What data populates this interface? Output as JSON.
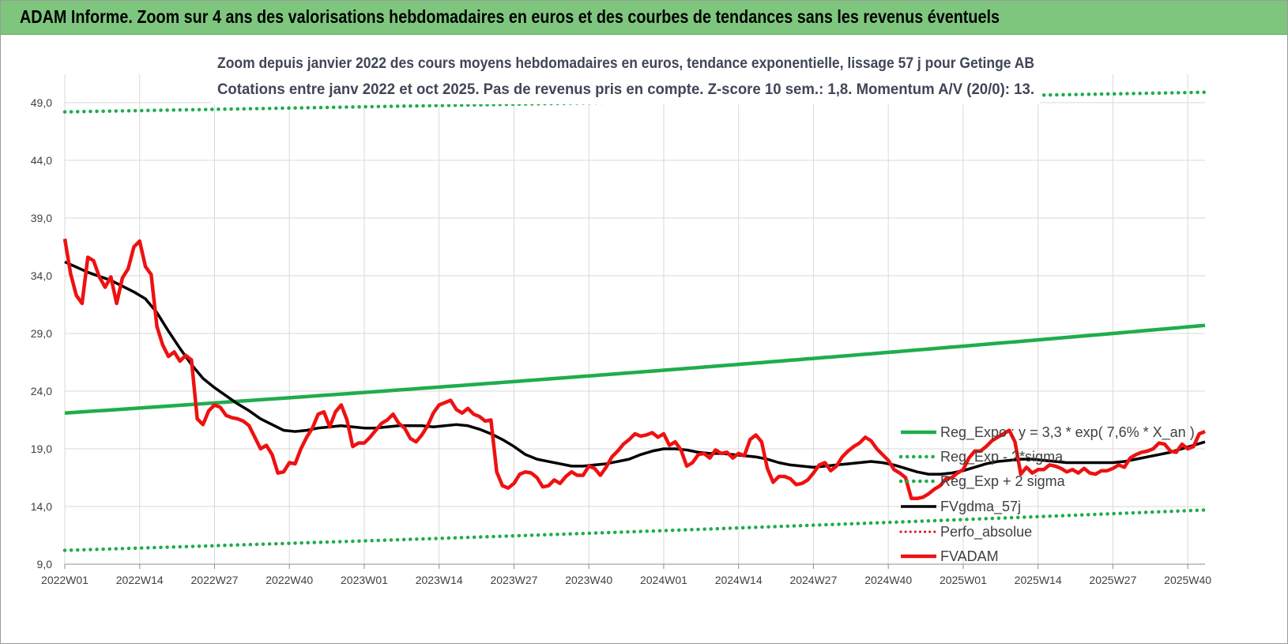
{
  "banner": {
    "title": "ADAM Informe. Zoom sur 4 ans des valorisations hebdomadaires en euros et des courbes de tendances sans les revenus éventuels"
  },
  "colors": {
    "banner_bg": "#7ec67e",
    "trend_green": "#1fad4c",
    "band_green": "#1fad4c",
    "fvgdma_black": "#000000",
    "perfo_red": "#e01010",
    "fvadam_red": "#ee1111",
    "grid": "#d9d9d9"
  },
  "chart_data": {
    "type": "line",
    "title": "Zoom depuis janvier 2022 des cours moyens hebdomadaires en euros, tendance exponentielle, lissage 57 j pour Getinge AB",
    "subtitle": "Cotations entre janv 2022 et oct 2025. Pas de revenus pris en compte. Z-score 10 sem.: 1,8. Momentum A/V (20/0): 13.",
    "x_ticks": [
      "2022W01",
      "2022W14",
      "2022W27",
      "2022W40",
      "2023W01",
      "2023W14",
      "2023W27",
      "2023W40",
      "2024W01",
      "2024W14",
      "2024W27",
      "2024W40",
      "2025W01",
      "2025W14",
      "2025W27",
      "2025W40"
    ],
    "x_tick_index": [
      0,
      13,
      26,
      39,
      52,
      65,
      78,
      91,
      104,
      117,
      130,
      143,
      156,
      169,
      182,
      195
    ],
    "n_weeks": 199,
    "y_ticks": [
      "9,0",
      "14,0",
      "19,0",
      "24,0",
      "29,0",
      "34,0",
      "39,0",
      "44,0",
      "49,0"
    ],
    "ylim": [
      9,
      50.5
    ],
    "grid": true,
    "legend_position": "right",
    "series": [
      {
        "name": "Reg_Expo : y = 3,3 * exp( 7,6% *  X_an )",
        "style": "solid",
        "start": 22.1,
        "end": 29.7
      },
      {
        "name": "Reg_Exp - 2*sigma",
        "style": "dotted",
        "start": 10.2,
        "end": 13.7
      },
      {
        "name": "Reg_Exp + 2 sigma",
        "style": "dotted",
        "start": 48.2,
        "end": 49.9
      },
      {
        "name": "FVgdma_57j",
        "style": "solid",
        "points": [
          [
            0,
            35.2
          ],
          [
            4,
            34.3
          ],
          [
            8,
            33.6
          ],
          [
            12,
            32.6
          ],
          [
            14,
            32.0
          ],
          [
            16,
            30.8
          ],
          [
            18,
            29.2
          ],
          [
            20,
            27.7
          ],
          [
            22,
            26.3
          ],
          [
            24,
            25.1
          ],
          [
            26,
            24.3
          ],
          [
            28,
            23.6
          ],
          [
            30,
            22.9
          ],
          [
            32,
            22.3
          ],
          [
            34,
            21.6
          ],
          [
            36,
            21.1
          ],
          [
            38,
            20.6
          ],
          [
            40,
            20.5
          ],
          [
            42,
            20.6
          ],
          [
            44,
            20.8
          ],
          [
            46,
            20.9
          ],
          [
            48,
            21.0
          ],
          [
            50,
            20.9
          ],
          [
            52,
            20.8
          ],
          [
            54,
            20.8
          ],
          [
            56,
            20.9
          ],
          [
            58,
            21.0
          ],
          [
            60,
            21.0
          ],
          [
            62,
            21.0
          ],
          [
            64,
            20.9
          ],
          [
            66,
            21.0
          ],
          [
            68,
            21.1
          ],
          [
            70,
            21.0
          ],
          [
            72,
            20.7
          ],
          [
            74,
            20.3
          ],
          [
            76,
            19.8
          ],
          [
            78,
            19.2
          ],
          [
            80,
            18.5
          ],
          [
            82,
            18.1
          ],
          [
            84,
            17.9
          ],
          [
            86,
            17.7
          ],
          [
            88,
            17.5
          ],
          [
            90,
            17.5
          ],
          [
            92,
            17.6
          ],
          [
            94,
            17.7
          ],
          [
            96,
            17.9
          ],
          [
            98,
            18.1
          ],
          [
            100,
            18.5
          ],
          [
            102,
            18.8
          ],
          [
            104,
            19.0
          ],
          [
            106,
            19.0
          ],
          [
            108,
            18.9
          ],
          [
            110,
            18.7
          ],
          [
            112,
            18.6
          ],
          [
            114,
            18.6
          ],
          [
            116,
            18.5
          ],
          [
            118,
            18.4
          ],
          [
            120,
            18.3
          ],
          [
            122,
            18.1
          ],
          [
            124,
            17.8
          ],
          [
            126,
            17.6
          ],
          [
            128,
            17.5
          ],
          [
            130,
            17.4
          ],
          [
            132,
            17.5
          ],
          [
            134,
            17.6
          ],
          [
            136,
            17.7
          ],
          [
            138,
            17.8
          ],
          [
            140,
            17.9
          ],
          [
            142,
            17.8
          ],
          [
            144,
            17.6
          ],
          [
            146,
            17.3
          ],
          [
            148,
            17.0
          ],
          [
            150,
            16.8
          ],
          [
            152,
            16.8
          ],
          [
            154,
            16.9
          ],
          [
            156,
            17.1
          ],
          [
            158,
            17.4
          ],
          [
            160,
            17.7
          ],
          [
            162,
            17.9
          ],
          [
            164,
            18.0
          ],
          [
            166,
            18.1
          ],
          [
            168,
            18.1
          ],
          [
            170,
            18.0
          ],
          [
            172,
            17.9
          ],
          [
            174,
            17.8
          ],
          [
            176,
            17.8
          ],
          [
            178,
            17.8
          ],
          [
            180,
            17.8
          ],
          [
            182,
            17.8
          ],
          [
            184,
            17.9
          ],
          [
            186,
            18.1
          ],
          [
            188,
            18.3
          ],
          [
            190,
            18.5
          ],
          [
            192,
            18.7
          ],
          [
            194,
            19.0
          ],
          [
            196,
            19.3
          ],
          [
            198,
            19.6
          ]
        ]
      },
      {
        "name": "Perfo_absolue",
        "style": "dotted",
        "points": []
      },
      {
        "name": "FVADAM",
        "style": "solid-thick",
        "points": [
          [
            0,
            37.2
          ],
          [
            1,
            34.2
          ],
          [
            2,
            32.3
          ],
          [
            3,
            31.6
          ],
          [
            4,
            35.6
          ],
          [
            5,
            35.3
          ],
          [
            6,
            33.9
          ],
          [
            7,
            33.0
          ],
          [
            8,
            33.9
          ],
          [
            9,
            31.6
          ],
          [
            10,
            33.8
          ],
          [
            11,
            34.6
          ],
          [
            12,
            36.5
          ],
          [
            13,
            37.0
          ],
          [
            14,
            34.8
          ],
          [
            15,
            34.1
          ],
          [
            16,
            29.6
          ],
          [
            17,
            28.0
          ],
          [
            18,
            27.0
          ],
          [
            19,
            27.4
          ],
          [
            20,
            26.6
          ],
          [
            21,
            27.1
          ],
          [
            22,
            26.7
          ],
          [
            23,
            21.6
          ],
          [
            24,
            21.1
          ],
          [
            25,
            22.3
          ],
          [
            26,
            22.8
          ],
          [
            27,
            22.6
          ],
          [
            28,
            21.9
          ],
          [
            29,
            21.7
          ],
          [
            30,
            21.6
          ],
          [
            31,
            21.4
          ],
          [
            32,
            21.0
          ],
          [
            33,
            20.0
          ],
          [
            34,
            19.0
          ],
          [
            35,
            19.3
          ],
          [
            36,
            18.5
          ],
          [
            37,
            16.9
          ],
          [
            38,
            17.0
          ],
          [
            39,
            17.8
          ],
          [
            40,
            17.7
          ],
          [
            41,
            19.0
          ],
          [
            42,
            20.0
          ],
          [
            43,
            20.8
          ],
          [
            44,
            22.0
          ],
          [
            45,
            22.2
          ],
          [
            46,
            20.9
          ],
          [
            47,
            22.2
          ],
          [
            48,
            22.8
          ],
          [
            49,
            21.5
          ],
          [
            50,
            19.2
          ],
          [
            51,
            19.5
          ],
          [
            52,
            19.5
          ],
          [
            53,
            20.0
          ],
          [
            54,
            20.6
          ],
          [
            55,
            21.2
          ],
          [
            56,
            21.5
          ],
          [
            57,
            22.0
          ],
          [
            58,
            21.2
          ],
          [
            59,
            20.8
          ],
          [
            60,
            19.9
          ],
          [
            61,
            19.6
          ],
          [
            62,
            20.2
          ],
          [
            63,
            21.0
          ],
          [
            64,
            22.1
          ],
          [
            65,
            22.8
          ],
          [
            66,
            23.0
          ],
          [
            67,
            23.2
          ],
          [
            68,
            22.4
          ],
          [
            69,
            22.1
          ],
          [
            70,
            22.5
          ],
          [
            71,
            22.0
          ],
          [
            72,
            21.8
          ],
          [
            73,
            21.4
          ],
          [
            74,
            21.5
          ],
          [
            75,
            17.0
          ],
          [
            76,
            15.8
          ],
          [
            77,
            15.6
          ],
          [
            78,
            16.0
          ],
          [
            79,
            16.8
          ],
          [
            80,
            17.0
          ],
          [
            81,
            16.9
          ],
          [
            82,
            16.5
          ],
          [
            83,
            15.7
          ],
          [
            84,
            15.8
          ],
          [
            85,
            16.3
          ],
          [
            86,
            16.0
          ],
          [
            87,
            16.6
          ],
          [
            88,
            17.0
          ],
          [
            89,
            16.7
          ],
          [
            90,
            16.7
          ],
          [
            91,
            17.5
          ],
          [
            92,
            17.3
          ],
          [
            93,
            16.7
          ],
          [
            94,
            17.4
          ],
          [
            95,
            18.3
          ],
          [
            96,
            18.8
          ],
          [
            97,
            19.4
          ],
          [
            98,
            19.8
          ],
          [
            99,
            20.3
          ],
          [
            100,
            20.1
          ],
          [
            101,
            20.2
          ],
          [
            102,
            20.4
          ],
          [
            103,
            20.0
          ],
          [
            104,
            20.3
          ],
          [
            105,
            19.3
          ],
          [
            106,
            19.6
          ],
          [
            107,
            18.9
          ],
          [
            108,
            17.5
          ],
          [
            109,
            17.8
          ],
          [
            110,
            18.5
          ],
          [
            111,
            18.6
          ],
          [
            112,
            18.2
          ],
          [
            113,
            18.9
          ],
          [
            114,
            18.6
          ],
          [
            115,
            18.7
          ],
          [
            116,
            18.2
          ],
          [
            117,
            18.6
          ],
          [
            118,
            18.4
          ],
          [
            119,
            19.8
          ],
          [
            120,
            20.2
          ],
          [
            121,
            19.6
          ],
          [
            122,
            17.3
          ],
          [
            123,
            16.1
          ],
          [
            124,
            16.6
          ],
          [
            125,
            16.6
          ],
          [
            126,
            16.4
          ],
          [
            127,
            15.9
          ],
          [
            128,
            16.0
          ],
          [
            129,
            16.3
          ],
          [
            130,
            16.9
          ],
          [
            131,
            17.6
          ],
          [
            132,
            17.8
          ],
          [
            133,
            17.1
          ],
          [
            134,
            17.5
          ],
          [
            135,
            18.3
          ],
          [
            136,
            18.8
          ],
          [
            137,
            19.2
          ],
          [
            138,
            19.5
          ],
          [
            139,
            20.0
          ],
          [
            140,
            19.7
          ],
          [
            141,
            19.0
          ],
          [
            142,
            18.5
          ],
          [
            143,
            18.0
          ],
          [
            144,
            17.2
          ],
          [
            145,
            16.9
          ],
          [
            146,
            16.5
          ],
          [
            147,
            14.7
          ],
          [
            148,
            14.7
          ],
          [
            149,
            14.8
          ],
          [
            150,
            15.1
          ],
          [
            151,
            15.5
          ],
          [
            152,
            15.8
          ],
          [
            153,
            16.4
          ],
          [
            154,
            16.5
          ],
          [
            155,
            16.9
          ],
          [
            156,
            17.2
          ],
          [
            157,
            18.2
          ],
          [
            158,
            18.8
          ],
          [
            159,
            18.8
          ],
          [
            160,
            19.2
          ],
          [
            161,
            19.7
          ],
          [
            162,
            20.0
          ],
          [
            163,
            20.3
          ],
          [
            164,
            20.6
          ],
          [
            165,
            19.6
          ],
          [
            166,
            16.8
          ],
          [
            167,
            17.4
          ],
          [
            168,
            16.9
          ],
          [
            169,
            17.2
          ],
          [
            170,
            17.2
          ],
          [
            171,
            17.6
          ],
          [
            172,
            17.5
          ],
          [
            173,
            17.3
          ],
          [
            174,
            17.0
          ],
          [
            175,
            17.2
          ],
          [
            176,
            16.9
          ],
          [
            177,
            17.3
          ],
          [
            178,
            16.9
          ],
          [
            179,
            16.8
          ],
          [
            180,
            17.1
          ],
          [
            181,
            17.1
          ],
          [
            182,
            17.3
          ],
          [
            183,
            17.6
          ],
          [
            184,
            17.4
          ],
          [
            185,
            18.2
          ],
          [
            186,
            18.5
          ],
          [
            187,
            18.7
          ],
          [
            188,
            18.8
          ],
          [
            189,
            19.0
          ],
          [
            190,
            19.5
          ],
          [
            191,
            19.4
          ],
          [
            192,
            18.8
          ],
          [
            193,
            18.7
          ],
          [
            194,
            19.4
          ],
          [
            195,
            19.0
          ],
          [
            196,
            19.2
          ],
          [
            197,
            20.3
          ],
          [
            198,
            20.5
          ]
        ]
      }
    ]
  }
}
